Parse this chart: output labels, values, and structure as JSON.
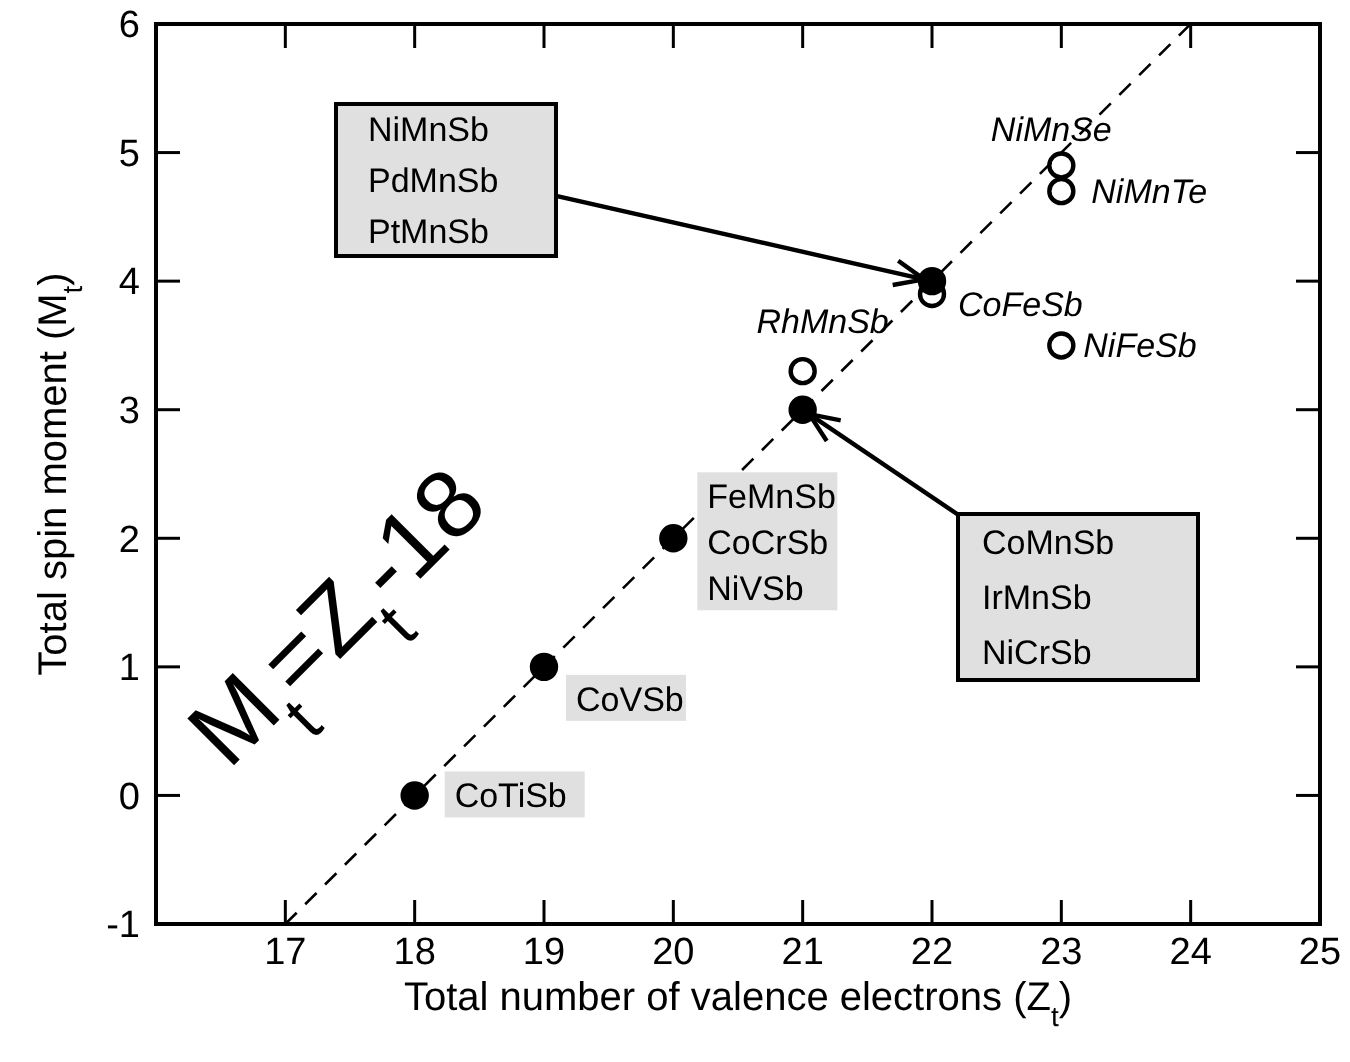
{
  "chart_data": {
    "type": "scatter",
    "xlabel": "Total number of valence electrons (Z$_{t}$)",
    "ylabel": "Total spin moment (M$_{t}$)",
    "xlim": [
      16,
      25
    ],
    "xticks": [
      17,
      18,
      19,
      20,
      21,
      22,
      23,
      24,
      25
    ],
    "ylim": [
      -1,
      6
    ],
    "yticks": [
      -1,
      0,
      1,
      2,
      3,
      4,
      5,
      6
    ],
    "grid": false,
    "marker": "circle",
    "series": [
      {
        "type": "line",
        "color": "#000000",
        "line_style": "dashed",
        "marker": "none",
        "x": [
          17,
          24
        ],
        "values": [
          -1,
          6
        ]
      },
      {
        "color": "#000000",
        "x": [
          18,
          19,
          20,
          21,
          22
        ],
        "values": [
          0,
          1,
          2,
          3,
          4
        ]
      },
      {
        "color": "#000000",
        "x": [
          21,
          22,
          23,
          23,
          23
        ],
        "values": [
          3.3,
          3.9,
          3.5,
          4.7,
          4.9
        ]
      }
    ],
    "annotations": [
      {
        "text": "CoTiSb",
        "x": 18,
        "y": 0
      },
      {
        "text": "CoVSb",
        "x": 19,
        "y": 1
      },
      {
        "text": "FeMnSb\nCoCrSb\nNiVSb",
        "x": 20,
        "y": 2
      },
      {
        "text": "NiMnSb\nPdMnSb\nPtMnSb",
        "x": 22,
        "y": 4
      },
      {
        "text": "CoMnSb\nIrMnSb\nNiCrSb",
        "x": 21,
        "y": 3
      },
      {
        "text": "RhMnSb",
        "x": 21,
        "y": 3.3
      },
      {
        "text": "NiMnSe",
        "x": 23,
        "y": 4.9
      },
      {
        "text": "NiMnTe",
        "x": 23,
        "y": 4.7
      },
      {
        "text": "CoFeSb",
        "x": 22,
        "y": 3.9
      },
      {
        "text": "NiFeSb",
        "x": 23,
        "y": 3.5
      },
      "M$_{t}$=Z$_{t}$-18"
    ]
  }
}
